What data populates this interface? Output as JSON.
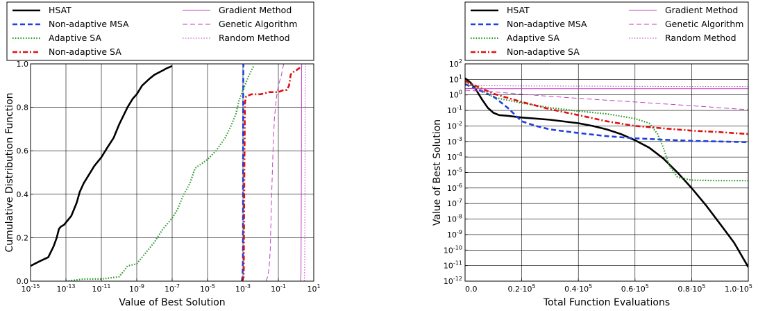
{
  "chart_data": [
    {
      "type": "line",
      "xlabel": "Value of Best Solution",
      "ylabel": "Cumulative Distribution Function",
      "xscale": "log",
      "xlim": [
        1e-15,
        10
      ],
      "ylim": [
        0,
        1
      ],
      "grid": true,
      "legend": "top, two columns, outside plot",
      "x_ticks": [
        {
          "value": 1e-15,
          "base": "10",
          "exp": "-15"
        },
        {
          "value": 1e-13,
          "base": "10",
          "exp": "-13"
        },
        {
          "value": 1e-11,
          "base": "10",
          "exp": "-11"
        },
        {
          "value": 1e-09,
          "base": "10",
          "exp": "-9"
        },
        {
          "value": 1e-07,
          "base": "10",
          "exp": "-7"
        },
        {
          "value": 1e-05,
          "base": "10",
          "exp": "-5"
        },
        {
          "value": 0.001,
          "base": "10",
          "exp": "-3"
        },
        {
          "value": 0.1,
          "base": "10",
          "exp": "-1"
        },
        {
          "value": 10,
          "base": "10",
          "exp": "1"
        }
      ],
      "y_ticks": [
        {
          "value": 0,
          "label": "0.0"
        },
        {
          "value": 0.2,
          "label": "0.2"
        },
        {
          "value": 0.4,
          "label": "0.4"
        },
        {
          "value": 0.6,
          "label": "0.6"
        },
        {
          "value": 0.8,
          "label": "0.8"
        },
        {
          "value": 1,
          "label": "1.0"
        }
      ],
      "series": [
        {
          "name": "HSAT",
          "color": "#000000",
          "dash": "solid",
          "width": 2.6,
          "x": [
            1e-15,
            3e-15,
            1e-14,
            2e-14,
            3e-14,
            4e-14,
            5e-14,
            8e-14,
            1e-13,
            2e-13,
            4e-13,
            6e-13,
            1e-12,
            2e-12,
            4e-12,
            1e-11,
            2e-11,
            5e-11,
            1e-10,
            3e-10,
            6e-10,
            1e-09,
            2e-09,
            5e-09,
            1e-08,
            3e-08,
            5e-08,
            1e-07
          ],
          "y": [
            0.07,
            0.09,
            0.11,
            0.16,
            0.2,
            0.24,
            0.25,
            0.26,
            0.27,
            0.3,
            0.36,
            0.41,
            0.45,
            0.49,
            0.53,
            0.57,
            0.61,
            0.66,
            0.72,
            0.8,
            0.84,
            0.86,
            0.9,
            0.93,
            0.95,
            0.97,
            0.98,
            0.99
          ]
        },
        {
          "name": "Non-adaptive MSA",
          "color": "#1f3fe0",
          "dash": "dashed",
          "width": 2.6,
          "x": [
            0.00085,
            0.00095,
            0.001,
            0.00102,
            0.00104,
            0.00106
          ],
          "y": [
            0,
            0.02,
            0.1,
            0.5,
            0.9,
            1
          ]
        },
        {
          "name": "Adaptive SA",
          "color": "#2a9a2a",
          "dash": "dotted",
          "width": 2.2,
          "x": [
            1e-13,
            1e-12,
            1e-11,
            1e-10,
            2e-10,
            3e-10,
            1e-09,
            1e-08,
            3e-08,
            1e-07,
            2e-07,
            4e-07,
            1e-06,
            2e-06,
            1e-05,
            3e-05,
            0.0001,
            0.0002,
            0.0004,
            0.0006,
            0.001,
            0.002,
            0.004
          ],
          "y": [
            0,
            0.01,
            0.01,
            0.02,
            0.05,
            0.07,
            0.08,
            0.18,
            0.24,
            0.29,
            0.33,
            0.39,
            0.45,
            0.52,
            0.56,
            0.6,
            0.66,
            0.71,
            0.77,
            0.83,
            0.88,
            0.94,
            0.99
          ]
        },
        {
          "name": "Non-adaptive SA",
          "color": "#e01010",
          "dash": "dashdot",
          "width": 2.6,
          "x": [
            0.0009,
            0.0011,
            0.0012,
            0.0013,
            0.0015,
            0.003,
            0.01,
            0.03,
            0.1,
            0.2,
            0.3,
            0.4,
            0.5,
            0.6,
            1,
            1.5,
            2
          ],
          "y": [
            0,
            0.02,
            0.5,
            0.82,
            0.85,
            0.86,
            0.86,
            0.87,
            0.87,
            0.88,
            0.88,
            0.9,
            0.95,
            0.96,
            0.97,
            0.98,
            0.99
          ]
        },
        {
          "name": "Gradient Method",
          "color": "#c040c0",
          "dash": "solid",
          "width": 1,
          "x": [
            1.8,
            1.9,
            2.0,
            2.05,
            2.1
          ],
          "y": [
            0,
            0.03,
            0.5,
            0.97,
            1
          ]
        },
        {
          "name": "Genetic Algorithm",
          "color": "#c040c0",
          "dash": "dashed",
          "width": 1,
          "x": [
            0.02,
            0.025,
            0.03,
            0.035,
            0.04,
            0.05,
            0.06,
            0.08,
            0.1,
            0.15,
            0.2
          ],
          "y": [
            0,
            0.02,
            0.06,
            0.15,
            0.35,
            0.6,
            0.75,
            0.85,
            0.9,
            0.95,
            1
          ]
        },
        {
          "name": "Random Method",
          "color": "#c040c0",
          "dash": "dotted",
          "width": 1,
          "x": [
            3.0,
            3.1,
            3.2,
            3.3,
            3.4
          ],
          "y": [
            0,
            0.1,
            0.5,
            0.9,
            1
          ]
        }
      ]
    },
    {
      "type": "line",
      "xlabel": "Total Function Evaluations",
      "ylabel": "Value of Best Solution",
      "yscale": "log",
      "xlim": [
        0,
        100000
      ],
      "ylim": [
        1e-12,
        100
      ],
      "grid": true,
      "legend": "top, two columns, outside plot",
      "x_ticks": [
        {
          "value": 0,
          "base": "0.0",
          "exp": ""
        },
        {
          "value": 20000,
          "base": "0.2·10",
          "exp": "5"
        },
        {
          "value": 40000,
          "base": "0.4·10",
          "exp": "5"
        },
        {
          "value": 60000,
          "base": "0.6·10",
          "exp": "5"
        },
        {
          "value": 80000,
          "base": "0.8·10",
          "exp": "5"
        },
        {
          "value": 100000,
          "base": "1.0·10",
          "exp": "5"
        }
      ],
      "y_ticks": [
        {
          "value": 100,
          "base": "10",
          "exp": "2"
        },
        {
          "value": 10,
          "base": "10",
          "exp": "1"
        },
        {
          "value": 1,
          "base": "10",
          "exp": "0"
        },
        {
          "value": 0.1,
          "base": "10",
          "exp": "-1"
        },
        {
          "value": 0.01,
          "base": "10",
          "exp": "-2"
        },
        {
          "value": 0.001,
          "base": "10",
          "exp": "-3"
        },
        {
          "value": 0.0001,
          "base": "10",
          "exp": "-4"
        },
        {
          "value": 1e-05,
          "base": "10",
          "exp": "-5"
        },
        {
          "value": 1e-06,
          "base": "10",
          "exp": "-6"
        },
        {
          "value": 1e-07,
          "base": "10",
          "exp": "-7"
        },
        {
          "value": 1e-08,
          "base": "10",
          "exp": "-8"
        },
        {
          "value": 1e-09,
          "base": "10",
          "exp": "-9"
        },
        {
          "value": 1e-10,
          "base": "10",
          "exp": "-10"
        },
        {
          "value": 1e-11,
          "base": "10",
          "exp": "-11"
        },
        {
          "value": 1e-12,
          "base": "10",
          "exp": "-12"
        }
      ],
      "series": [
        {
          "name": "HSAT",
          "color": "#000000",
          "dash": "solid",
          "width": 2.6,
          "x": [
            0,
            2000,
            4000,
            6000,
            8000,
            10000,
            12000,
            15000,
            20000,
            30000,
            40000,
            45000,
            50000,
            55000,
            60000,
            65000,
            70000,
            75000,
            80000,
            85000,
            90000,
            95000,
            100000
          ],
          "y": [
            12,
            6,
            2,
            0.5,
            0.15,
            0.07,
            0.05,
            0.045,
            0.035,
            0.025,
            0.015,
            0.01,
            0.006,
            0.003,
            0.0012,
            0.0004,
            8e-05,
            1e-05,
            1e-06,
            8e-08,
            5e-09,
            3e-10,
            8e-12
          ]
        },
        {
          "name": "Non-adaptive MSA",
          "color": "#1f3fe0",
          "dash": "dashed",
          "width": 2.6,
          "x": [
            0,
            5000,
            10000,
            15000,
            20000,
            25000,
            30000,
            40000,
            50000,
            60000,
            70000,
            80000,
            90000,
            100000
          ],
          "y": [
            5,
            2,
            0.8,
            0.15,
            0.02,
            0.01,
            0.006,
            0.0035,
            0.0022,
            0.0016,
            0.0013,
            0.0011,
            0.001,
            0.0009
          ]
        },
        {
          "name": "Adaptive SA",
          "color": "#2a9a2a",
          "dash": "dotted",
          "width": 2.2,
          "x": [
            0,
            5000,
            10000,
            20000,
            30000,
            40000,
            50000,
            60000,
            65000,
            68000,
            70000,
            72000,
            75000,
            80000,
            90000,
            100000
          ],
          "y": [
            6,
            2.5,
            0.7,
            0.3,
            0.15,
            0.09,
            0.06,
            0.03,
            0.015,
            0.003,
            0.0004,
            3e-05,
            5e-06,
            3.2e-06,
            3e-06,
            3e-06
          ]
        },
        {
          "name": "Non-adaptive SA",
          "color": "#e01010",
          "dash": "dashdot",
          "width": 2.6,
          "x": [
            0,
            5000,
            10000,
            20000,
            30000,
            40000,
            50000,
            60000,
            70000,
            80000,
            90000,
            100000
          ],
          "y": [
            8,
            3,
            1.2,
            0.35,
            0.12,
            0.05,
            0.02,
            0.01,
            0.007,
            0.005,
            0.004,
            0.003
          ]
        },
        {
          "name": "Gradient Method",
          "color": "#c040c0",
          "dash": "solid",
          "width": 1,
          "x": [
            0,
            5000,
            10000,
            20000,
            40000,
            60000,
            80000,
            100000
          ],
          "y": [
            2.6,
            2.5,
            2.5,
            2.5,
            2.5,
            2.5,
            2.5,
            2.5
          ]
        },
        {
          "name": "Genetic Algorithm",
          "color": "#c040c0",
          "dash": "dashed",
          "width": 1,
          "x": [
            0,
            10000,
            20000,
            40000,
            60000,
            80000,
            100000
          ],
          "y": [
            2,
            1.6,
            1.1,
            0.6,
            0.35,
            0.2,
            0.11
          ]
        },
        {
          "name": "Random Method",
          "color": "#c040c0",
          "dash": "dotted",
          "width": 1,
          "x": [
            0,
            20000,
            40000,
            60000,
            80000,
            100000
          ],
          "y": [
            4,
            3.8,
            3.7,
            3.6,
            3.5,
            3.5
          ]
        }
      ]
    }
  ]
}
